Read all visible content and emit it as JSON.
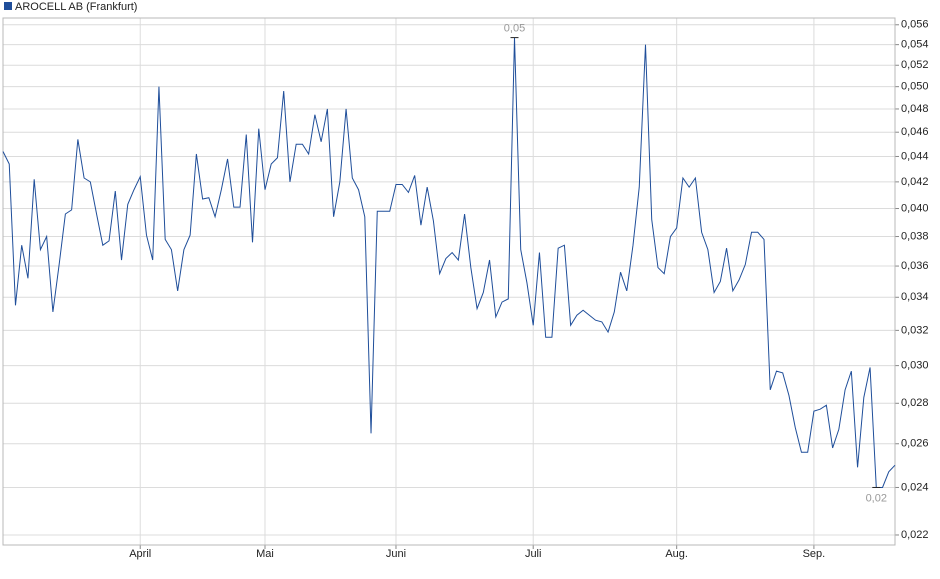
{
  "chart_data": {
    "type": "line",
    "series": [
      {
        "name": "AROCELL AB (Frankfurt)",
        "color": "#1f4e9a",
        "values": [
          0.0444,
          0.0434,
          0.0335,
          0.0374,
          0.0352,
          0.0422,
          0.0371,
          0.038,
          0.0331,
          0.0361,
          0.0396,
          0.0399,
          0.0454,
          0.0423,
          0.042,
          0.0396,
          0.0374,
          0.0377,
          0.0413,
          0.0364,
          0.0403,
          0.0414,
          0.0424,
          0.0381,
          0.0364,
          0.05,
          0.0378,
          0.0371,
          0.0344,
          0.0371,
          0.0381,
          0.0442,
          0.0407,
          0.0408,
          0.0394,
          0.0414,
          0.0438,
          0.0401,
          0.0401,
          0.0458,
          0.0376,
          0.0463,
          0.0414,
          0.0434,
          0.0439,
          0.0496,
          0.042,
          0.045,
          0.045,
          0.0442,
          0.0475,
          0.0452,
          0.048,
          0.0394,
          0.042,
          0.048,
          0.0423,
          0.0414,
          0.0394,
          0.0265,
          0.0398,
          0.0398,
          0.0398,
          0.0418,
          0.0418,
          0.0412,
          0.0425,
          0.0388,
          0.0416,
          0.0391,
          0.0355,
          0.0365,
          0.0369,
          0.0364,
          0.0396,
          0.0359,
          0.0333,
          0.0343,
          0.0364,
          0.0328,
          0.0337,
          0.0339,
          0.0547,
          0.0371,
          0.0349,
          0.0323,
          0.0369,
          0.0316,
          0.0316,
          0.0372,
          0.0374,
          0.0323,
          0.0329,
          0.0332,
          0.0329,
          0.0326,
          0.0325,
          0.0319,
          0.0331,
          0.0356,
          0.0344,
          0.0374,
          0.0416,
          0.054,
          0.0392,
          0.0359,
          0.0355,
          0.038,
          0.0386,
          0.0423,
          0.0416,
          0.0423,
          0.0383,
          0.0371,
          0.0343,
          0.035,
          0.0372,
          0.0344,
          0.0351,
          0.0361,
          0.0383,
          0.0383,
          0.0378,
          0.0287,
          0.0297,
          0.0296,
          0.0284,
          0.0268,
          0.0256,
          0.0256,
          0.0276,
          0.0277,
          0.0279,
          0.0258,
          0.0267,
          0.0287,
          0.0297,
          0.0249,
          0.0283,
          0.0299,
          0.024,
          0.024,
          0.0247,
          0.025
        ]
      }
    ],
    "xlim": [
      0,
      143
    ],
    "xticks": [
      {
        "value": 22,
        "label": "April"
      },
      {
        "value": 42,
        "label": "Mai"
      },
      {
        "value": 63,
        "label": "Juni"
      },
      {
        "value": 85,
        "label": "Juli"
      },
      {
        "value": 108,
        "label": "Aug."
      },
      {
        "value": 130,
        "label": "Sep."
      }
    ],
    "ylim": [
      0.0216,
      0.0567
    ],
    "log": true,
    "yticks": [
      {
        "value": 0.022,
        "label": "0,022"
      },
      {
        "value": 0.024,
        "label": "0,024"
      },
      {
        "value": 0.026,
        "label": "0,026"
      },
      {
        "value": 0.028,
        "label": "0,028"
      },
      {
        "value": 0.03,
        "label": "0,030"
      },
      {
        "value": 0.032,
        "label": "0,032"
      },
      {
        "value": 0.034,
        "label": "0,034"
      },
      {
        "value": 0.036,
        "label": "0,036"
      },
      {
        "value": 0.038,
        "label": "0,038"
      },
      {
        "value": 0.04,
        "label": "0,040"
      },
      {
        "value": 0.042,
        "label": "0,042"
      },
      {
        "value": 0.044,
        "label": "0,044"
      },
      {
        "value": 0.046,
        "label": "0,046"
      },
      {
        "value": 0.048,
        "label": "0,048"
      },
      {
        "value": 0.05,
        "label": "0,050"
      },
      {
        "value": 0.052,
        "label": "0,052"
      },
      {
        "value": 0.054,
        "label": "0,054"
      },
      {
        "value": 0.056,
        "label": "0,056"
      }
    ],
    "grid": true,
    "legend": "top-left",
    "annotations": [
      {
        "label": "0,05",
        "x": 82,
        "y": 0.0547
      },
      {
        "label": "0,02",
        "x": 140,
        "y": 0.024
      }
    ]
  }
}
